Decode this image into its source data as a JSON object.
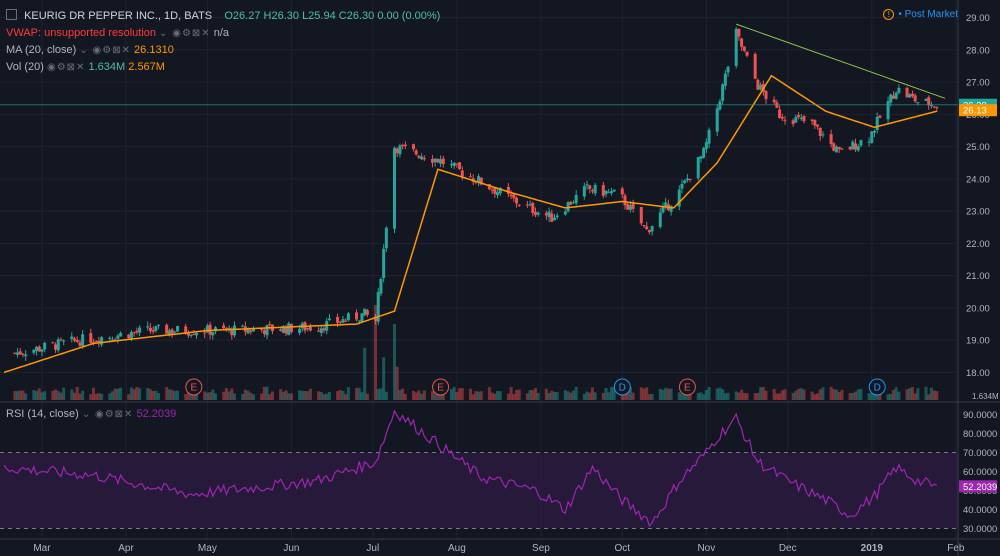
{
  "header": {
    "symbol": "KEURIG DR PEPPER INC., 1D, BATS",
    "ohlc": {
      "open": "O26.27",
      "high": "H26.30",
      "low": "L25.94",
      "close": "C26.30",
      "change": "0.00 (0.00%)"
    },
    "vwap": {
      "label": "VWAP: unsupported resolution",
      "value": "n/a"
    },
    "ma": {
      "label": "MA (20, close)",
      "value": "26.1310"
    },
    "vol": {
      "label": "Vol (20)",
      "value1": "1.634M",
      "value2": "2.567M"
    },
    "rsi": {
      "label": "RSI (14, close)",
      "value": "52.2039"
    },
    "post_market": "Post Market"
  },
  "colors": {
    "up": "#26a69a",
    "down": "#ef5350",
    "ma": "#ff9800",
    "rsi": "#9c27b0",
    "trend": "#8bc34a"
  },
  "chart_data": [
    {
      "type": "candlestick",
      "title": "KEURIG DR PEPPER INC., 1D, BATS",
      "ylim": [
        17.3,
        29.3
      ],
      "y_ticks": [
        "18.00",
        "19.00",
        "20.00",
        "21.00",
        "22.00",
        "23.00",
        "24.00",
        "25.00",
        "26.00",
        "27.00",
        "28.00",
        "29.00"
      ],
      "x_ticks": [
        "Mar",
        "Apr",
        "May",
        "Jun",
        "Jul",
        "Aug",
        "Sep",
        "Oct",
        "Nov",
        "Dec",
        "2019",
        "Feb"
      ],
      "price_label": "26.30",
      "ma_label": "26.13",
      "volume_label": "1.634M",
      "events": [
        {
          "date": "2018-04-26",
          "label": "E"
        },
        {
          "date": "2018-07-26",
          "label": "E"
        },
        {
          "date": "2018-10-01",
          "label": "D"
        },
        {
          "date": "2018-10-25",
          "label": "E"
        },
        {
          "date": "2019-01-03",
          "label": "D"
        }
      ],
      "close_anchors": [
        [
          "2018-02-19",
          18.6
        ],
        [
          "2018-03-15",
          19.0
        ],
        [
          "2018-04-10",
          19.3
        ],
        [
          "2018-05-10",
          19.3
        ],
        [
          "2018-06-10",
          19.4
        ],
        [
          "2018-06-28",
          19.8
        ],
        [
          "2018-07-02",
          19.6
        ],
        [
          "2018-07-05",
          21.8
        ],
        [
          "2018-07-09",
          25.0
        ],
        [
          "2018-07-25",
          24.6
        ],
        [
          "2018-08-10",
          23.9
        ],
        [
          "2018-08-25",
          23.2
        ],
        [
          "2018-09-05",
          22.8
        ],
        [
          "2018-09-18",
          23.7
        ],
        [
          "2018-09-30",
          23.5
        ],
        [
          "2018-10-10",
          22.4
        ],
        [
          "2018-10-22",
          23.6
        ],
        [
          "2018-10-31",
          24.8
        ],
        [
          "2018-11-05",
          26.2
        ],
        [
          "2018-11-12",
          28.5
        ],
        [
          "2018-11-20",
          26.9
        ],
        [
          "2018-11-28",
          26.0
        ],
        [
          "2018-12-10",
          25.7
        ],
        [
          "2018-12-20",
          24.8
        ],
        [
          "2018-12-31",
          25.3
        ],
        [
          "2019-01-10",
          26.8
        ],
        [
          "2019-01-18",
          26.4
        ],
        [
          "2019-01-25",
          26.3
        ]
      ],
      "ma_anchors": [
        [
          "2018-02-15",
          18.0
        ],
        [
          "2018-03-20",
          18.9
        ],
        [
          "2018-05-01",
          19.3
        ],
        [
          "2018-06-25",
          19.5
        ],
        [
          "2018-07-09",
          19.9
        ],
        [
          "2018-07-25",
          24.3
        ],
        [
          "2018-08-20",
          23.6
        ],
        [
          "2018-09-10",
          23.1
        ],
        [
          "2018-10-01",
          23.3
        ],
        [
          "2018-10-20",
          23.1
        ],
        [
          "2018-11-05",
          24.5
        ],
        [
          "2018-11-25",
          27.2
        ],
        [
          "2018-12-15",
          26.1
        ],
        [
          "2019-01-02",
          25.6
        ],
        [
          "2019-01-25",
          26.1
        ]
      ],
      "trendline": [
        [
          "2018-11-12",
          28.8
        ],
        [
          "2019-01-28",
          26.5
        ]
      ],
      "volume_spikes": [
        [
          "2018-06-28",
          0.55
        ],
        [
          "2018-07-02",
          1.0
        ],
        [
          "2018-07-05",
          0.45
        ],
        [
          "2018-07-09",
          0.8
        ],
        [
          "2018-07-10",
          0.35
        ]
      ]
    },
    {
      "type": "line",
      "title": "RSI (14, close)",
      "ylim": [
        25,
        95
      ],
      "y_ticks": [
        "30.0000",
        "40.0000",
        "50.0000",
        "60.0000",
        "70.0000",
        "80.0000",
        "90.0000"
      ],
      "band": [
        30,
        70
      ],
      "value_label": "52.2039",
      "anchors": [
        [
          "2018-02-15",
          62
        ],
        [
          "2018-03-20",
          58
        ],
        [
          "2018-04-25",
          48
        ],
        [
          "2018-06-10",
          55
        ],
        [
          "2018-07-02",
          65
        ],
        [
          "2018-07-09",
          92
        ],
        [
          "2018-07-20",
          80
        ],
        [
          "2018-08-10",
          57
        ],
        [
          "2018-08-30",
          50
        ],
        [
          "2018-09-10",
          40
        ],
        [
          "2018-09-20",
          62
        ],
        [
          "2018-10-01",
          45
        ],
        [
          "2018-10-12",
          33
        ],
        [
          "2018-10-22",
          55
        ],
        [
          "2018-11-01",
          70
        ],
        [
          "2018-11-05",
          78
        ],
        [
          "2018-11-12",
          88
        ],
        [
          "2018-11-20",
          65
        ],
        [
          "2018-12-01",
          55
        ],
        [
          "2018-12-15",
          45
        ],
        [
          "2018-12-24",
          37
        ],
        [
          "2019-01-02",
          47
        ],
        [
          "2019-01-10",
          62
        ],
        [
          "2019-01-18",
          55
        ],
        [
          "2019-01-25",
          52
        ]
      ]
    }
  ]
}
